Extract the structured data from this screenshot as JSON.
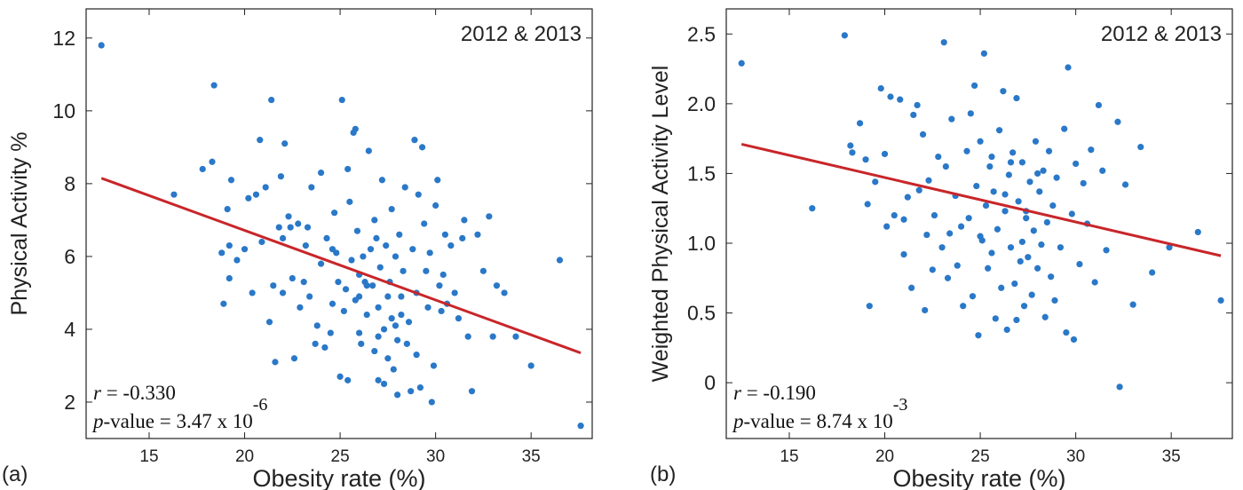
{
  "chart_data": [
    {
      "type": "scatter",
      "panel_label": "(a)",
      "annotation": "2012 & 2013",
      "xlabel": "Obesity rate (%)",
      "ylabel": "Physical Activity %",
      "xlim": [
        11.7,
        38.2
      ],
      "ylim": [
        1.0,
        12.8
      ],
      "xticks": [
        15,
        20,
        25,
        30,
        35
      ],
      "yticks": [
        2,
        4,
        6,
        8,
        10,
        12
      ],
      "regression_line": {
        "x": [
          12.5,
          37.6
        ],
        "y": [
          8.15,
          3.35
        ]
      },
      "r_label": "r",
      "r_text": " = -0.330",
      "p_label": "p",
      "p_text": "-value = 3.47 x 10",
      "p_exponent": "-6",
      "points": [
        [
          12.5,
          11.8
        ],
        [
          16.3,
          7.7
        ],
        [
          17.8,
          8.4
        ],
        [
          18.3,
          8.6
        ],
        [
          18.4,
          10.7
        ],
        [
          18.8,
          6.1
        ],
        [
          18.9,
          4.7
        ],
        [
          19.1,
          7.3
        ],
        [
          19.2,
          6.3
        ],
        [
          19.3,
          8.1
        ],
        [
          19.2,
          5.4
        ],
        [
          19.6,
          5.9
        ],
        [
          20.0,
          6.2
        ],
        [
          20.2,
          7.6
        ],
        [
          20.4,
          5.0
        ],
        [
          20.6,
          7.7
        ],
        [
          20.8,
          9.2
        ],
        [
          20.9,
          6.4
        ],
        [
          21.1,
          7.9
        ],
        [
          21.3,
          4.2
        ],
        [
          21.4,
          10.3
        ],
        [
          21.5,
          5.2
        ],
        [
          21.6,
          3.1
        ],
        [
          21.8,
          6.8
        ],
        [
          21.9,
          8.2
        ],
        [
          22.0,
          6.5
        ],
        [
          22.0,
          5.0
        ],
        [
          22.1,
          9.1
        ],
        [
          22.3,
          7.1
        ],
        [
          22.4,
          6.8
        ],
        [
          22.5,
          5.4
        ],
        [
          22.6,
          3.2
        ],
        [
          22.8,
          6.9
        ],
        [
          22.9,
          4.6
        ],
        [
          23.1,
          5.3
        ],
        [
          23.2,
          6.3
        ],
        [
          23.3,
          6.8
        ],
        [
          23.4,
          4.9
        ],
        [
          23.5,
          7.9
        ],
        [
          23.7,
          3.6
        ],
        [
          23.8,
          4.1
        ],
        [
          24.0,
          8.3
        ],
        [
          24.0,
          5.8
        ],
        [
          24.2,
          3.5
        ],
        [
          24.3,
          6.5
        ],
        [
          24.5,
          3.9
        ],
        [
          24.6,
          4.7
        ],
        [
          24.7,
          7.2
        ],
        [
          24.8,
          6.1
        ],
        [
          24.9,
          5.3
        ],
        [
          25.0,
          2.7
        ],
        [
          25.1,
          10.3
        ],
        [
          25.2,
          4.5
        ],
        [
          25.3,
          5.1
        ],
        [
          25.4,
          8.4
        ],
        [
          25.4,
          2.6
        ],
        [
          25.5,
          7.5
        ],
        [
          25.6,
          5.9
        ],
        [
          25.7,
          9.4
        ],
        [
          25.8,
          9.5
        ],
        [
          25.9,
          6.7
        ],
        [
          26.0,
          4.9
        ],
        [
          26.0,
          3.9
        ],
        [
          26.1,
          3.6
        ],
        [
          26.2,
          6.0
        ],
        [
          26.3,
          5.3
        ],
        [
          26.4,
          4.4
        ],
        [
          26.5,
          8.9
        ],
        [
          26.6,
          6.2
        ],
        [
          26.7,
          5.2
        ],
        [
          26.8,
          7.0
        ],
        [
          26.8,
          3.4
        ],
        [
          26.9,
          6.5
        ],
        [
          27.0,
          4.6
        ],
        [
          27.0,
          2.6
        ],
        [
          27.1,
          5.7
        ],
        [
          27.2,
          8.1
        ],
        [
          27.3,
          4.0
        ],
        [
          27.3,
          2.5
        ],
        [
          27.4,
          6.3
        ],
        [
          27.5,
          4.9
        ],
        [
          27.5,
          3.2
        ],
        [
          27.6,
          5.3
        ],
        [
          27.7,
          7.3
        ],
        [
          27.7,
          4.3
        ],
        [
          27.8,
          2.9
        ],
        [
          27.9,
          4.1
        ],
        [
          28.0,
          3.7
        ],
        [
          28.0,
          2.2
        ],
        [
          28.1,
          6.6
        ],
        [
          28.2,
          4.4
        ],
        [
          28.3,
          5.6
        ],
        [
          28.4,
          7.9
        ],
        [
          28.5,
          3.6
        ],
        [
          28.6,
          4.2
        ],
        [
          28.7,
          2.3
        ],
        [
          28.8,
          6.2
        ],
        [
          28.9,
          9.2
        ],
        [
          29.0,
          5.0
        ],
        [
          29.0,
          3.3
        ],
        [
          29.1,
          7.7
        ],
        [
          29.2,
          2.4
        ],
        [
          29.3,
          9.0
        ],
        [
          29.4,
          6.9
        ],
        [
          29.5,
          5.6
        ],
        [
          29.6,
          4.6
        ],
        [
          29.7,
          6.1
        ],
        [
          29.8,
          2.0
        ],
        [
          29.9,
          3.0
        ],
        [
          30.0,
          7.4
        ],
        [
          30.1,
          8.1
        ],
        [
          30.2,
          5.2
        ],
        [
          30.3,
          4.5
        ],
        [
          30.4,
          5.5
        ],
        [
          30.5,
          6.6
        ],
        [
          30.6,
          4.7
        ],
        [
          30.8,
          6.3
        ],
        [
          31.0,
          5.0
        ],
        [
          31.2,
          4.3
        ],
        [
          31.4,
          6.5
        ],
        [
          31.5,
          7.0
        ],
        [
          31.7,
          3.8
        ],
        [
          31.9,
          2.3
        ],
        [
          32.2,
          6.6
        ],
        [
          32.5,
          5.6
        ],
        [
          32.8,
          7.1
        ],
        [
          33.0,
          3.8
        ],
        [
          33.2,
          5.2
        ],
        [
          33.6,
          5.0
        ],
        [
          34.2,
          3.8
        ],
        [
          35.0,
          3.0
        ],
        [
          36.5,
          5.9
        ],
        [
          37.6,
          1.35
        ],
        [
          26.4,
          5.2
        ],
        [
          27.0,
          3.8
        ],
        [
          25.8,
          4.8
        ],
        [
          28.2,
          4.9
        ],
        [
          26.0,
          5.5
        ],
        [
          24.6,
          6.2
        ],
        [
          27.9,
          6.0
        ]
      ]
    },
    {
      "type": "scatter",
      "panel_label": "(b)",
      "annotation": "2012 & 2013",
      "xlabel": "Obesity rate (%)",
      "ylabel": "Weighted Physical Activity Level",
      "xlim": [
        11.7,
        38.2
      ],
      "ylim": [
        -0.4,
        2.68
      ],
      "xticks": [
        15,
        20,
        25,
        30,
        35
      ],
      "yticks": [
        0,
        0.5,
        1.0,
        1.5,
        2.0,
        2.5
      ],
      "ytick_labels": [
        "0",
        "0.5",
        "1.0",
        "1.5",
        "2.0",
        "2.5"
      ],
      "regression_line": {
        "x": [
          12.5,
          37.6
        ],
        "y": [
          1.71,
          0.91
        ]
      },
      "r_label": "r",
      "r_text": " = -0.190",
      "p_label": "p",
      "p_text": "-value = 8.74 x 10",
      "p_exponent": "-3",
      "points": [
        [
          12.5,
          2.29
        ],
        [
          16.2,
          1.25
        ],
        [
          17.9,
          2.49
        ],
        [
          18.2,
          1.7
        ],
        [
          18.3,
          1.65
        ],
        [
          18.7,
          1.86
        ],
        [
          19.0,
          1.6
        ],
        [
          19.1,
          1.28
        ],
        [
          19.2,
          0.55
        ],
        [
          19.5,
          1.44
        ],
        [
          19.8,
          2.11
        ],
        [
          20.0,
          1.64
        ],
        [
          20.1,
          1.12
        ],
        [
          20.3,
          2.05
        ],
        [
          20.5,
          1.2
        ],
        [
          20.8,
          2.03
        ],
        [
          21.0,
          0.92
        ],
        [
          21.2,
          1.33
        ],
        [
          21.4,
          0.68
        ],
        [
          21.5,
          1.92
        ],
        [
          21.7,
          1.99
        ],
        [
          21.8,
          1.38
        ],
        [
          22.0,
          1.78
        ],
        [
          22.1,
          0.52
        ],
        [
          22.2,
          1.06
        ],
        [
          22.3,
          1.45
        ],
        [
          22.5,
          0.81
        ],
        [
          22.6,
          1.2
        ],
        [
          22.8,
          1.62
        ],
        [
          23.0,
          0.97
        ],
        [
          23.1,
          2.44
        ],
        [
          23.2,
          1.55
        ],
        [
          23.3,
          0.75
        ],
        [
          23.5,
          1.89
        ],
        [
          23.7,
          1.34
        ],
        [
          23.8,
          0.84
        ],
        [
          24.0,
          1.12
        ],
        [
          24.1,
          0.55
        ],
        [
          24.3,
          1.66
        ],
        [
          24.5,
          1.93
        ],
        [
          24.6,
          0.62
        ],
        [
          24.7,
          2.13
        ],
        [
          24.8,
          1.41
        ],
        [
          24.9,
          0.34
        ],
        [
          25.0,
          1.73
        ],
        [
          25.1,
          1.02
        ],
        [
          25.2,
          2.36
        ],
        [
          25.3,
          1.27
        ],
        [
          25.4,
          0.82
        ],
        [
          25.5,
          1.55
        ],
        [
          25.6,
          0.93
        ],
        [
          25.7,
          1.37
        ],
        [
          25.8,
          0.46
        ],
        [
          25.9,
          1.1
        ],
        [
          26.0,
          1.81
        ],
        [
          26.1,
          0.68
        ],
        [
          26.2,
          2.09
        ],
        [
          26.3,
          1.23
        ],
        [
          26.4,
          0.38
        ],
        [
          26.5,
          1.49
        ],
        [
          26.6,
          0.97
        ],
        [
          26.7,
          1.65
        ],
        [
          26.8,
          0.71
        ],
        [
          26.9,
          2.04
        ],
        [
          27.0,
          1.3
        ],
        [
          27.1,
          0.87
        ],
        [
          27.2,
          1.58
        ],
        [
          27.3,
          0.55
        ],
        [
          27.4,
          1.18
        ],
        [
          27.5,
          0.9
        ],
        [
          27.6,
          1.44
        ],
        [
          27.7,
          0.63
        ],
        [
          27.8,
          1.09
        ],
        [
          27.9,
          1.73
        ],
        [
          28.0,
          0.82
        ],
        [
          28.1,
          1.37
        ],
        [
          28.2,
          0.99
        ],
        [
          28.3,
          1.52
        ],
        [
          28.4,
          0.47
        ],
        [
          28.5,
          1.15
        ],
        [
          28.6,
          1.66
        ],
        [
          28.7,
          0.76
        ],
        [
          28.8,
          1.27
        ],
        [
          28.9,
          0.59
        ],
        [
          29.0,
          1.47
        ],
        [
          29.2,
          0.97
        ],
        [
          29.4,
          1.82
        ],
        [
          29.5,
          0.36
        ],
        [
          29.6,
          2.26
        ],
        [
          29.8,
          1.21
        ],
        [
          29.9,
          0.31
        ],
        [
          30.0,
          1.57
        ],
        [
          30.2,
          0.85
        ],
        [
          30.4,
          1.43
        ],
        [
          30.6,
          1.14
        ],
        [
          30.8,
          1.67
        ],
        [
          31.0,
          0.72
        ],
        [
          31.2,
          1.99
        ],
        [
          31.4,
          1.52
        ],
        [
          31.6,
          0.95
        ],
        [
          32.2,
          1.87
        ],
        [
          32.3,
          -0.03
        ],
        [
          32.6,
          1.42
        ],
        [
          33.0,
          0.56
        ],
        [
          33.4,
          1.69
        ],
        [
          34.0,
          0.79
        ],
        [
          34.9,
          0.97
        ],
        [
          36.4,
          1.08
        ],
        [
          37.6,
          0.59
        ],
        [
          26.3,
          1.35
        ],
        [
          25.0,
          1.05
        ],
        [
          27.4,
          1.23
        ],
        [
          26.6,
          1.58
        ],
        [
          28.0,
          1.5
        ],
        [
          24.4,
          1.18
        ],
        [
          26.9,
          0.45
        ],
        [
          23.4,
          1.07
        ],
        [
          25.6,
          1.62
        ],
        [
          27.2,
          1.01
        ],
        [
          21.0,
          1.17
        ]
      ]
    }
  ]
}
